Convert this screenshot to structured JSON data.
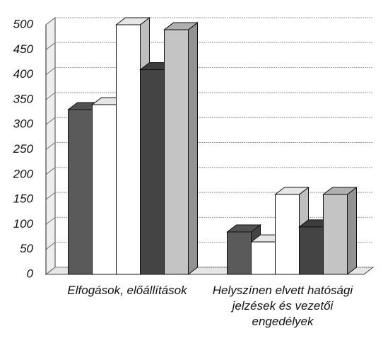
{
  "chart_data": {
    "type": "bar3d",
    "categories": [
      "Elfogások, előállítások",
      "Helyszínen elvett hatósági jelzések és vezetői engedélyek"
    ],
    "series": [
      {
        "color": "#5a5a5a",
        "values": [
          330,
          85
        ]
      },
      {
        "color": "#ffffff",
        "values": [
          340,
          65
        ]
      },
      {
        "color": "#ffffff",
        "values": [
          500,
          160
        ]
      },
      {
        "color": "#444444",
        "values": [
          410,
          95
        ]
      },
      {
        "color": "#c4c4c4",
        "values": [
          490,
          160
        ]
      }
    ],
    "ylim": [
      0,
      500
    ],
    "yticks": [
      0,
      50,
      100,
      150,
      200,
      250,
      300,
      350,
      400,
      450,
      500
    ],
    "grid": true
  }
}
